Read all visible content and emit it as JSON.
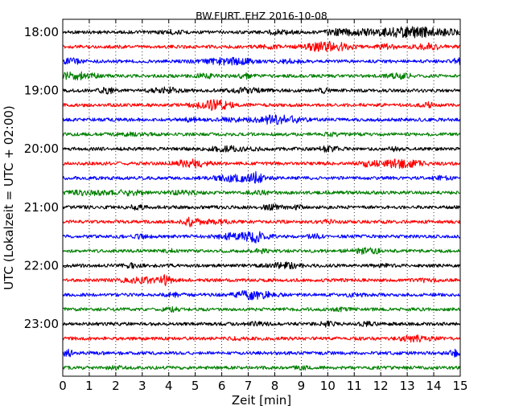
{
  "chart_data": {
    "type": "line",
    "title": "BW.FURT..EHZ 2016-10-08",
    "xlabel": "Zeit  [min]",
    "ylabel": "UTC (Lokalzeit = UTC + 02:00)",
    "xlim": [
      0,
      15
    ],
    "xticks": [
      "0",
      "1",
      "2",
      "3",
      "4",
      "5",
      "6",
      "7",
      "8",
      "9",
      "10",
      "11",
      "12",
      "13",
      "14",
      "15"
    ],
    "yticks": [
      "18:00",
      "19:00",
      "20:00",
      "21:00",
      "22:00",
      "23:00"
    ],
    "grid": "vertical dotted",
    "line_colors": [
      "#000000",
      "#ff0000",
      "#0000ff",
      "#008000"
    ],
    "traces": [
      {
        "start": "18:00",
        "color": "#000000",
        "bursts": [
          [
            13.2,
            1.8,
            0.9
          ],
          [
            10.6,
            0.7,
            0.5
          ],
          [
            8.2,
            0.5,
            0.4
          ],
          [
            4.1,
            0.4,
            0.3
          ]
        ]
      },
      {
        "start": "18:15",
        "color": "#ff0000",
        "bursts": [
          [
            10.0,
            0.8,
            1.0
          ],
          [
            12.2,
            0.4,
            0.4
          ],
          [
            13.8,
            0.5,
            0.5
          ],
          [
            7.8,
            0.3,
            0.3
          ]
        ]
      },
      {
        "start": "18:30",
        "color": "#0000ff",
        "bursts": [
          [
            0.3,
            0.4,
            0.5
          ],
          [
            6.3,
            0.9,
            0.6
          ],
          [
            8.6,
            0.4,
            0.3
          ],
          [
            14.9,
            0.2,
            0.5
          ]
        ]
      },
      {
        "start": "18:45",
        "color": "#008000",
        "bursts": [
          [
            0.5,
            0.8,
            0.6
          ],
          [
            5.4,
            0.4,
            0.4
          ],
          [
            6.9,
            0.3,
            0.4
          ],
          [
            12.8,
            0.5,
            0.4
          ]
        ]
      },
      {
        "start": "19:00",
        "color": "#000000",
        "bursts": [
          [
            1.7,
            0.3,
            0.5
          ],
          [
            3.9,
            0.5,
            0.5
          ],
          [
            7.0,
            0.6,
            0.4
          ],
          [
            9.9,
            0.3,
            0.3
          ]
        ]
      },
      {
        "start": "19:15",
        "color": "#ff0000",
        "bursts": [
          [
            5.6,
            0.7,
            0.8
          ],
          [
            6.0,
            0.3,
            0.6
          ],
          [
            13.8,
            0.3,
            0.4
          ]
        ]
      },
      {
        "start": "19:30",
        "color": "#0000ff",
        "bursts": [
          [
            8.1,
            0.9,
            0.8
          ],
          [
            4.8,
            0.4,
            0.3
          ],
          [
            6.3,
            0.4,
            0.3
          ]
        ]
      },
      {
        "start": "19:45",
        "color": "#008000",
        "bursts": [
          [
            2.5,
            0.6,
            0.2
          ],
          [
            10.2,
            0.5,
            0.2
          ]
        ]
      },
      {
        "start": "20:00",
        "color": "#000000",
        "bursts": [
          [
            6.4,
            0.8,
            0.5
          ],
          [
            10.0,
            0.4,
            0.4
          ],
          [
            12.5,
            0.3,
            0.3
          ]
        ]
      },
      {
        "start": "20:15",
        "color": "#ff0000",
        "bursts": [
          [
            4.9,
            0.6,
            0.8
          ],
          [
            12.6,
            0.9,
            0.8
          ],
          [
            11.4,
            0.3,
            0.4
          ]
        ]
      },
      {
        "start": "20:30",
        "color": "#0000ff",
        "bursts": [
          [
            6.6,
            0.8,
            0.6
          ],
          [
            7.3,
            0.2,
            1.0
          ],
          [
            14.3,
            0.4,
            0.3
          ]
        ]
      },
      {
        "start": "20:45",
        "color": "#008000",
        "bursts": [
          [
            0.9,
            0.7,
            0.4
          ],
          [
            2.5,
            0.6,
            0.4
          ],
          [
            4.6,
            0.5,
            0.3
          ],
          [
            7.5,
            0.4,
            0.3
          ]
        ]
      },
      {
        "start": "21:00",
        "color": "#000000",
        "bursts": [
          [
            2.8,
            0.3,
            0.3
          ],
          [
            7.9,
            0.4,
            0.4
          ],
          [
            8.8,
            0.3,
            0.3
          ]
        ]
      },
      {
        "start": "21:15",
        "color": "#ff0000",
        "bursts": [
          [
            4.9,
            0.3,
            0.9
          ],
          [
            5.8,
            0.4,
            0.4
          ],
          [
            10.0,
            0.3,
            0.3
          ]
        ]
      },
      {
        "start": "21:30",
        "color": "#0000ff",
        "bursts": [
          [
            6.8,
            0.9,
            0.7
          ],
          [
            7.3,
            0.2,
            0.6
          ],
          [
            3.0,
            0.3,
            0.3
          ],
          [
            9.5,
            0.3,
            0.3
          ]
        ]
      },
      {
        "start": "21:45",
        "color": "#008000",
        "bursts": [
          [
            11.5,
            0.6,
            0.5
          ],
          [
            4.0,
            0.3,
            0.3
          ],
          [
            7.5,
            0.3,
            0.3
          ]
        ]
      },
      {
        "start": "22:00",
        "color": "#000000",
        "bursts": [
          [
            8.4,
            0.6,
            0.5
          ],
          [
            12.0,
            0.3,
            0.3
          ],
          [
            2.6,
            0.3,
            0.3
          ]
        ]
      },
      {
        "start": "22:15",
        "color": "#ff0000",
        "bursts": [
          [
            3.0,
            0.8,
            0.5
          ],
          [
            3.9,
            0.2,
            0.8
          ],
          [
            13.8,
            0.3,
            0.3
          ]
        ]
      },
      {
        "start": "22:30",
        "color": "#0000ff",
        "bursts": [
          [
            7.2,
            0.7,
            0.8
          ],
          [
            4.2,
            0.3,
            0.3
          ],
          [
            11.0,
            0.3,
            0.3
          ]
        ]
      },
      {
        "start": "22:45",
        "color": "#008000",
        "bursts": [
          [
            4.1,
            0.4,
            0.3
          ],
          [
            10.5,
            0.3,
            0.2
          ]
        ]
      },
      {
        "start": "23:00",
        "color": "#000000",
        "bursts": [
          [
            7.3,
            0.3,
            0.3
          ],
          [
            10.0,
            0.3,
            0.4
          ],
          [
            11.5,
            0.3,
            0.3
          ]
        ]
      },
      {
        "start": "23:15",
        "color": "#ff0000",
        "bursts": [
          [
            13.3,
            0.6,
            0.5
          ],
          [
            6.5,
            0.3,
            0.2
          ]
        ]
      },
      {
        "start": "23:30",
        "color": "#0000ff",
        "bursts": [
          [
            0.2,
            0.2,
            0.6
          ],
          [
            14.8,
            0.2,
            0.6
          ]
        ]
      },
      {
        "start": "23:45",
        "color": "#008000",
        "bursts": [
          [
            2.0,
            0.3,
            0.2
          ],
          [
            9.0,
            0.3,
            0.2
          ]
        ]
      }
    ]
  }
}
